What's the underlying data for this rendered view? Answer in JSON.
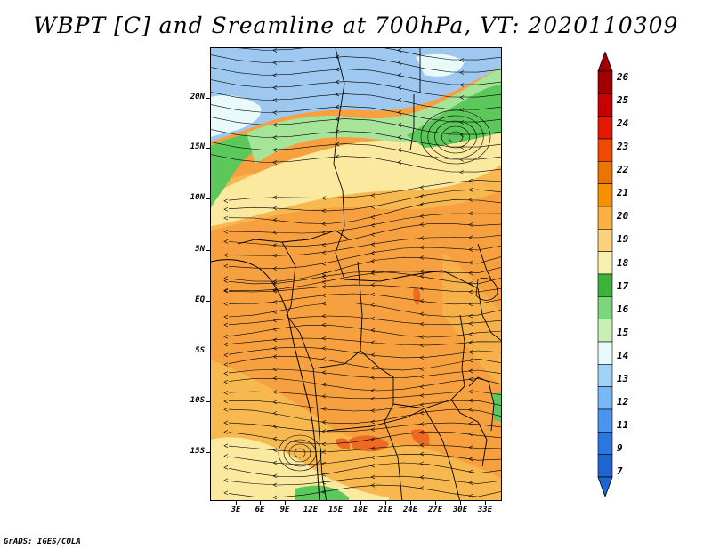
{
  "title": "WBPT [C] and Sreamline at 700hPa, VT: 2020110309",
  "footer": "GrADS: IGES/COLA",
  "latitude_labels": [
    "20N",
    "15N",
    "10N",
    "5N",
    "EQ",
    "5S",
    "10S",
    "15S"
  ],
  "longitude_labels": [
    "3E",
    "6E",
    "9E",
    "12E",
    "15E",
    "18E",
    "21E",
    "24E",
    "27E",
    "30E",
    "33E"
  ],
  "colorbar": {
    "levels": [
      "26",
      "25",
      "24",
      "23",
      "22",
      "21",
      "20",
      "19",
      "18",
      "17",
      "16",
      "15",
      "14",
      "13",
      "12",
      "11",
      "9",
      "7"
    ],
    "colors": [
      "#a00000",
      "#c80000",
      "#e41a00",
      "#f04a00",
      "#ee7400",
      "#f79100",
      "#fbb040",
      "#fcd27a",
      "#f8f0b0",
      "#3cb43c",
      "#7ad87a",
      "#c8f0b4",
      "#e8fafa",
      "#a0d2f8",
      "#78b8f8",
      "#4896f0",
      "#2878e0",
      "#1e64d2"
    ]
  },
  "colors": {
    "dry_blue": "#9ec8f0",
    "green": "#5cc85c",
    "light_green": "#a6e49a",
    "pale_yellow": "#fbe9a0",
    "orange": "#f6a040",
    "orange_light": "#f8b850",
    "red_orange": "#ee6a22",
    "streamline": "#000000"
  }
}
